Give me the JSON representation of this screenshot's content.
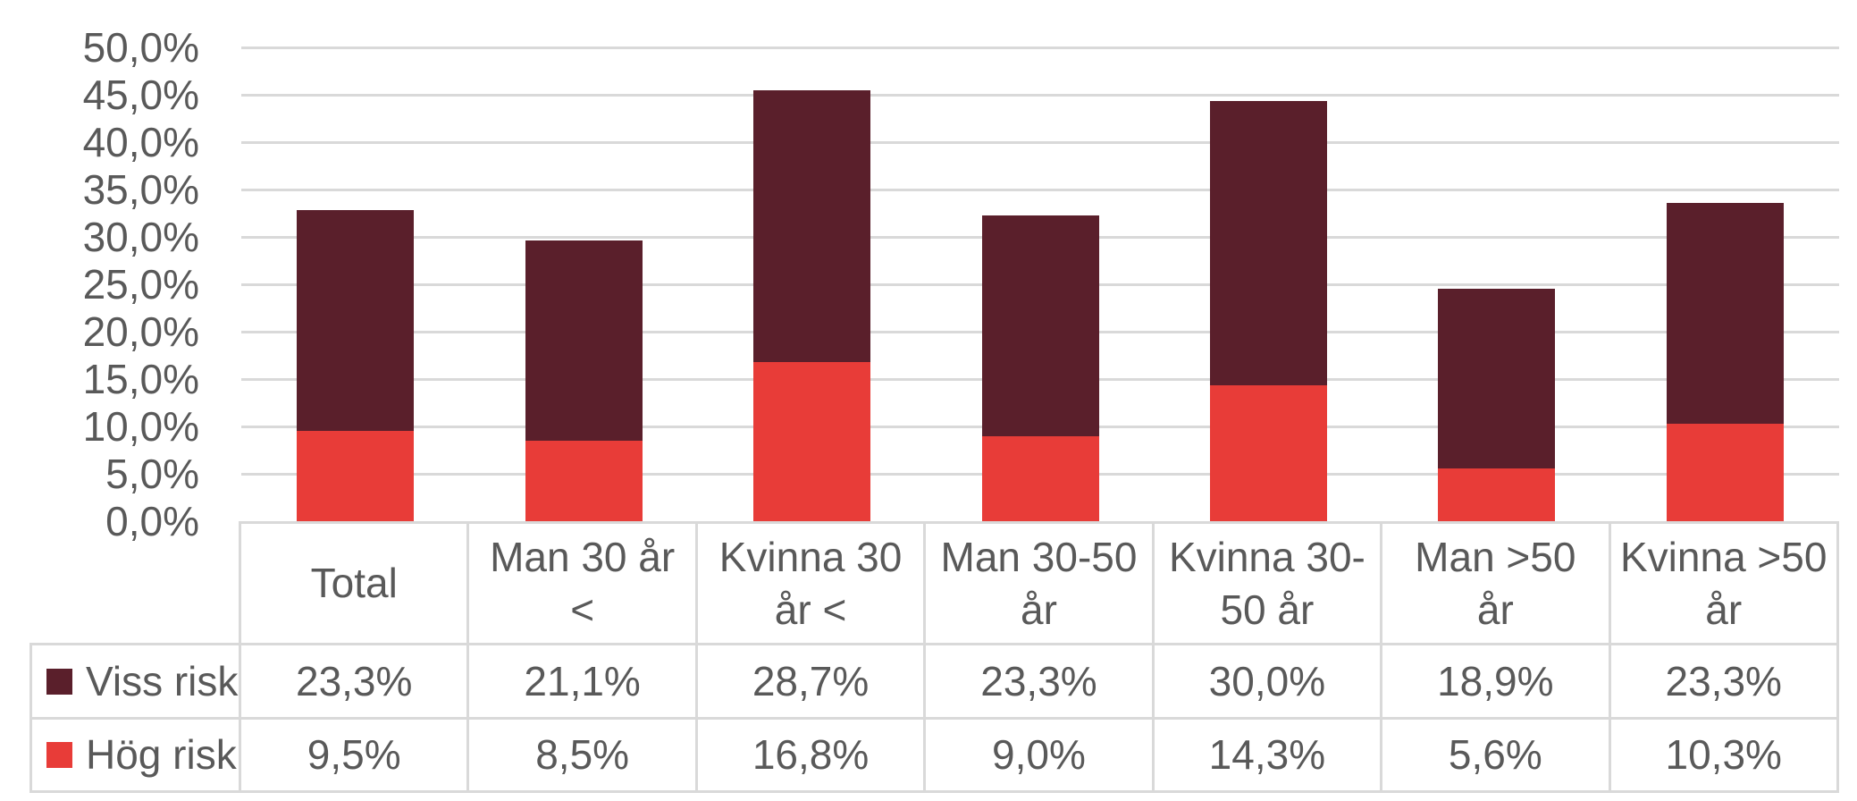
{
  "chart_data": {
    "type": "bar",
    "stacked": true,
    "title": "",
    "xlabel": "",
    "ylabel": "",
    "grid": true,
    "data_table_shown": true,
    "categories": [
      "Total",
      "Man 30 år <",
      "Kvinna 30 år <",
      "Man 30-50 år",
      "Kvinna 30-50 år",
      "Man >50 år",
      "Kvinna >50 år"
    ],
    "category_display_lines": [
      "Total",
      "Man 30 år\n<",
      "Kvinna 30\når <",
      "Man 30-50\når",
      "Kvinna 30-\n50 år",
      "Man >50\når",
      "Kvinna >50\når"
    ],
    "series": [
      {
        "name": "Viss risk",
        "color": "#5A1F2B",
        "stack_position": "top",
        "values": [
          23.3,
          21.1,
          28.7,
          23.3,
          30.0,
          18.9,
          23.3
        ],
        "value_labels": [
          "23,3%",
          "21,1%",
          "28,7%",
          "23,3%",
          "30,0%",
          "18,9%",
          "23,3%"
        ]
      },
      {
        "name": "Hög risk",
        "color": "#E83C38",
        "stack_position": "bottom",
        "values": [
          9.5,
          8.5,
          16.8,
          9.0,
          14.3,
          5.6,
          10.3
        ],
        "value_labels": [
          "9,5%",
          "8,5%",
          "16,8%",
          "9,0%",
          "14,3%",
          "5,6%",
          "10,3%"
        ]
      }
    ],
    "y_axis": {
      "min": 0,
      "max": 50,
      "step": 5,
      "tick_labels": [
        "0,0%",
        "5,0%",
        "10,0%",
        "15,0%",
        "20,0%",
        "25,0%",
        "30,0%",
        "35,0%",
        "40,0%",
        "45,0%",
        "50,0%"
      ]
    },
    "colors": {
      "text": "#595959",
      "gridline": "#D9D9D9",
      "table_border": "#D9D9D9",
      "background": "#FFFFFF"
    }
  }
}
